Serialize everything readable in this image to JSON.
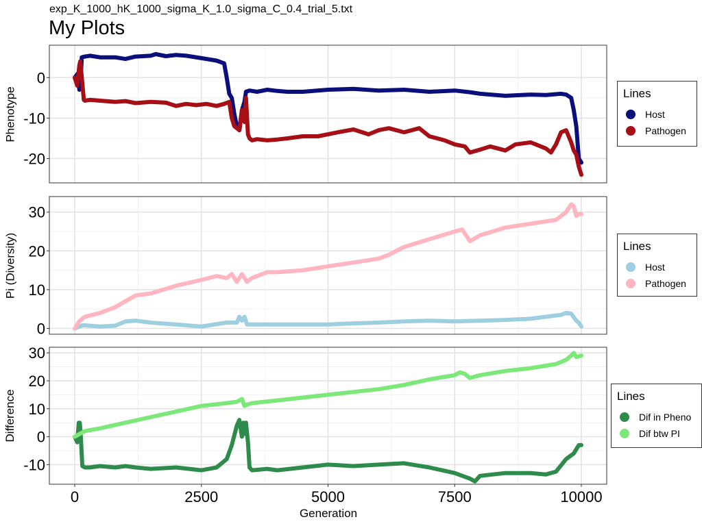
{
  "subtitle": "exp_K_1000_hK_1000_sigma_K_1.0_sigma_C_0.4_trial_5.txt",
  "title": "My Plots",
  "xlabel": "Generation",
  "x_ticks": [
    "0",
    "2500",
    "5000",
    "7500",
    "10000"
  ],
  "chart_data": [
    {
      "type": "line",
      "ylabel": "Phenotype",
      "xlim": [
        0,
        10000
      ],
      "ylim": [
        -26,
        8
      ],
      "y_ticks": [
        0,
        -10,
        -20
      ],
      "y_tick_labels": [
        "0",
        "-10",
        "-20"
      ],
      "grid": true,
      "legend": {
        "title": "Lines",
        "placement": "right"
      },
      "series": [
        {
          "name": "Host",
          "color": "#0b0f7c",
          "x": [
            0,
            60,
            90,
            110,
            140,
            200,
            300,
            500,
            800,
            1000,
            1200,
            1500,
            1600,
            1800,
            2000,
            2200,
            2500,
            2800,
            2950,
            3000,
            3050,
            3100,
            3150,
            3200,
            3250,
            3300,
            3350,
            3380,
            3450,
            3600,
            3800,
            4000,
            4200,
            4500,
            5000,
            5500,
            6000,
            6500,
            7000,
            7500,
            7800,
            8000,
            8500,
            9000,
            9300,
            9600,
            9700,
            9800,
            9850,
            9900,
            9950,
            10000
          ],
          "y": [
            0,
            1,
            -3,
            -2,
            5,
            5.2,
            5.4,
            5,
            5,
            4.6,
            5.2,
            5.4,
            5.8,
            5.3,
            5.6,
            5.4,
            4.8,
            4.2,
            3.5,
            0,
            -4,
            -5,
            -9,
            -12,
            -13,
            -8,
            -6,
            -3.5,
            -3.2,
            -3.5,
            -3,
            -3.3,
            -3.5,
            -3.5,
            -3,
            -2.8,
            -3.2,
            -3,
            -3.5,
            -3.2,
            -3.6,
            -4,
            -4.5,
            -4.2,
            -4.3,
            -4,
            -4.2,
            -5,
            -8,
            -12,
            -20,
            -21
          ]
        },
        {
          "name": "Pathogen",
          "color": "#a50f15",
          "x": [
            0,
            50,
            90,
            110,
            140,
            180,
            200,
            300,
            500,
            800,
            1000,
            1200,
            1500,
            1800,
            2000,
            2200,
            2400,
            2600,
            2800,
            2950,
            3050,
            3100,
            3150,
            3250,
            3300,
            3350,
            3380,
            3420,
            3450,
            3500,
            3600,
            3800,
            4000,
            4200,
            4500,
            4800,
            5000,
            5200,
            5500,
            5800,
            6000,
            6200,
            6500,
            6800,
            7000,
            7300,
            7500,
            7700,
            7800,
            8000,
            8200,
            8500,
            8700,
            9000,
            9200,
            9300,
            9400,
            9500,
            9600,
            9700,
            9800,
            9850,
            9900,
            9950,
            10000
          ],
          "y": [
            0,
            -2,
            3,
            4,
            0,
            -5.5,
            -5.7,
            -5.5,
            -5.7,
            -6,
            -5.8,
            -6.3,
            -6,
            -6.2,
            -7,
            -6.5,
            -6.8,
            -6.5,
            -7,
            -6.5,
            -6,
            -10,
            -12,
            -13,
            -8,
            -11,
            -5,
            -14,
            -15,
            -15.5,
            -15.2,
            -15.5,
            -15.3,
            -15,
            -14.5,
            -14.5,
            -14,
            -13.5,
            -12.8,
            -14,
            -13,
            -12.5,
            -13.5,
            -12.5,
            -14.5,
            -15.5,
            -16.5,
            -17,
            -18.5,
            -17.8,
            -17,
            -18,
            -16.5,
            -16,
            -17,
            -17.5,
            -18.5,
            -16.5,
            -13.5,
            -13,
            -16,
            -18,
            -19,
            -22,
            -24
          ]
        }
      ]
    },
    {
      "type": "line",
      "ylabel": "Pi (Diversity)",
      "xlim": [
        0,
        10000
      ],
      "ylim": [
        -1.5,
        34
      ],
      "y_ticks": [
        0,
        10,
        20,
        30
      ],
      "y_tick_labels": [
        "0",
        "10",
        "20",
        "30"
      ],
      "grid": true,
      "legend": {
        "title": "Lines",
        "placement": "right"
      },
      "series": [
        {
          "name": "Host",
          "color": "#9ecfe0",
          "x": [
            0,
            100,
            150,
            200,
            500,
            800,
            1000,
            1200,
            1500,
            2000,
            2500,
            3000,
            3200,
            3250,
            3300,
            3350,
            3400,
            3500,
            4000,
            5000,
            5500,
            6000,
            6500,
            7000,
            7500,
            8000,
            8500,
            9000,
            9300,
            9600,
            9700,
            9800,
            9900,
            9950,
            10000
          ],
          "y": [
            0,
            0.5,
            0.8,
            0.8,
            0.5,
            0.7,
            1.8,
            2,
            1.5,
            1,
            0.5,
            1.5,
            1.5,
            3,
            2,
            3,
            1,
            1,
            1,
            1,
            1.3,
            1.5,
            1.8,
            2,
            1.8,
            2,
            2.2,
            2.5,
            3,
            3.5,
            4,
            3.8,
            2,
            1.5,
            0.5
          ]
        },
        {
          "name": "Pathogen",
          "color": "#ffb6c1",
          "x": [
            0,
            100,
            200,
            500,
            800,
            1000,
            1200,
            1500,
            2000,
            2500,
            2800,
            3000,
            3100,
            3200,
            3300,
            3350,
            3400,
            3500,
            3800,
            4000,
            4500,
            5000,
            5500,
            6000,
            6200,
            6500,
            7000,
            7500,
            7650,
            7800,
            8000,
            8500,
            9000,
            9500,
            9700,
            9800,
            9850,
            9900,
            9950,
            10000
          ],
          "y": [
            0,
            2,
            3,
            4,
            5.5,
            7,
            8.5,
            9,
            11,
            12.5,
            13.5,
            13,
            14,
            12,
            14,
            13,
            12,
            13,
            14.5,
            14.5,
            15,
            16,
            17,
            18,
            19,
            21,
            23,
            25,
            25.5,
            22.5,
            24,
            26,
            27,
            28,
            30,
            32,
            31.5,
            29,
            29.5,
            29.5
          ]
        }
      ]
    },
    {
      "type": "line",
      "ylabel": "Difference",
      "xlim": [
        0,
        10000
      ],
      "ylim": [
        -17,
        32
      ],
      "y_ticks": [
        30,
        20,
        10,
        0,
        -10
      ],
      "y_tick_labels": [
        "30",
        "20",
        "10",
        "0",
        "-10"
      ],
      "grid": true,
      "legend": {
        "title": "Lines",
        "placement": "right"
      },
      "series": [
        {
          "name": "Dif in Pheno",
          "color": "#2e8b4c",
          "x": [
            0,
            50,
            80,
            100,
            120,
            150,
            200,
            300,
            500,
            800,
            1000,
            1200,
            1500,
            2000,
            2500,
            2800,
            3000,
            3100,
            3200,
            3250,
            3300,
            3330,
            3350,
            3380,
            3420,
            3450,
            3500,
            3800,
            4000,
            4500,
            5000,
            5500,
            6000,
            6500,
            7000,
            7500,
            7800,
            7900,
            8000,
            8500,
            9000,
            9300,
            9500,
            9700,
            9850,
            9950,
            10000
          ],
          "y": [
            0,
            -2,
            5,
            5,
            0,
            -10.5,
            -11,
            -11,
            -10.5,
            -11,
            -10.5,
            -11,
            -11.5,
            -11,
            -12,
            -11,
            -8,
            -3,
            4,
            6,
            0,
            5,
            1,
            5,
            -2,
            -11,
            -12,
            -11.5,
            -12,
            -11,
            -10,
            -10.5,
            -10,
            -9.5,
            -11,
            -13,
            -15,
            -16,
            -14,
            -13,
            -13,
            -13.5,
            -12.5,
            -8,
            -6,
            -3,
            -3
          ]
        },
        {
          "name": "Dif btw PI",
          "color": "#7de87a",
          "x": [
            0,
            100,
            200,
            500,
            1000,
            1500,
            2000,
            2500,
            3000,
            3200,
            3300,
            3350,
            3400,
            3500,
            4000,
            4500,
            5000,
            5500,
            6000,
            6500,
            7000,
            7500,
            7600,
            7700,
            7800,
            8000,
            8500,
            9000,
            9500,
            9700,
            9800,
            9850,
            9900,
            10000
          ],
          "y": [
            0,
            1,
            2,
            3,
            5,
            7,
            9,
            11,
            12,
            12.5,
            13.5,
            11,
            11.5,
            12,
            13,
            14,
            15,
            16,
            17,
            18.5,
            20.5,
            22,
            23,
            22.5,
            21,
            22,
            23.5,
            24.5,
            26,
            27.5,
            29,
            30,
            28.5,
            29
          ]
        }
      ]
    }
  ]
}
